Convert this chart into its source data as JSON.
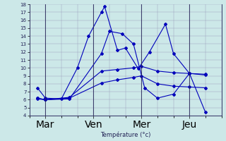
{
  "xlabel": "Température (°c)",
  "ylim": [
    4,
    18
  ],
  "xlim": [
    0,
    12
  ],
  "yticks": [
    4,
    5,
    6,
    7,
    8,
    9,
    10,
    11,
    12,
    13,
    14,
    15,
    16,
    17,
    18
  ],
  "xtick_labels": [
    "Mar",
    "Ven",
    "Mer",
    "Jeu"
  ],
  "xtick_positions": [
    1,
    4,
    7,
    10
  ],
  "background_color": "#cce8e8",
  "grid_color": "#9999bb",
  "line_color": "#0000bb",
  "lines": [
    {
      "x": [
        0.5,
        1.0,
        2.0,
        3.0,
        3.7,
        4.5,
        4.7,
        5.5,
        6.0,
        6.8,
        7.5,
        8.5,
        9.0,
        10.0,
        11.0
      ],
      "y": [
        7.5,
        6.2,
        6.1,
        10.0,
        14.0,
        17.0,
        17.7,
        12.2,
        12.5,
        9.9,
        12.0,
        15.5,
        11.8,
        9.3,
        9.2
      ]
    },
    {
      "x": [
        0.5,
        1.0,
        2.5,
        4.5,
        5.0,
        5.8,
        6.5,
        7.2,
        8.0,
        9.0,
        10.0,
        11.0
      ],
      "y": [
        6.2,
        6.0,
        6.1,
        11.8,
        14.6,
        14.3,
        13.0,
        7.5,
        6.2,
        6.7,
        9.3,
        4.4
      ]
    },
    {
      "x": [
        0.5,
        1.0,
        2.5,
        4.5,
        5.5,
        6.5,
        7.0,
        8.0,
        9.0,
        10.0,
        11.0
      ],
      "y": [
        6.2,
        6.0,
        6.3,
        9.6,
        9.8,
        10.0,
        10.2,
        9.6,
        9.4,
        9.3,
        9.1
      ]
    },
    {
      "x": [
        0.5,
        1.0,
        2.5,
        4.5,
        5.5,
        6.5,
        7.0,
        8.0,
        9.0,
        10.0,
        11.0
      ],
      "y": [
        6.1,
        6.0,
        6.2,
        8.1,
        8.5,
        8.8,
        9.0,
        8.0,
        7.7,
        7.6,
        7.5
      ]
    }
  ],
  "vlines": [
    1,
    4,
    7,
    10
  ]
}
